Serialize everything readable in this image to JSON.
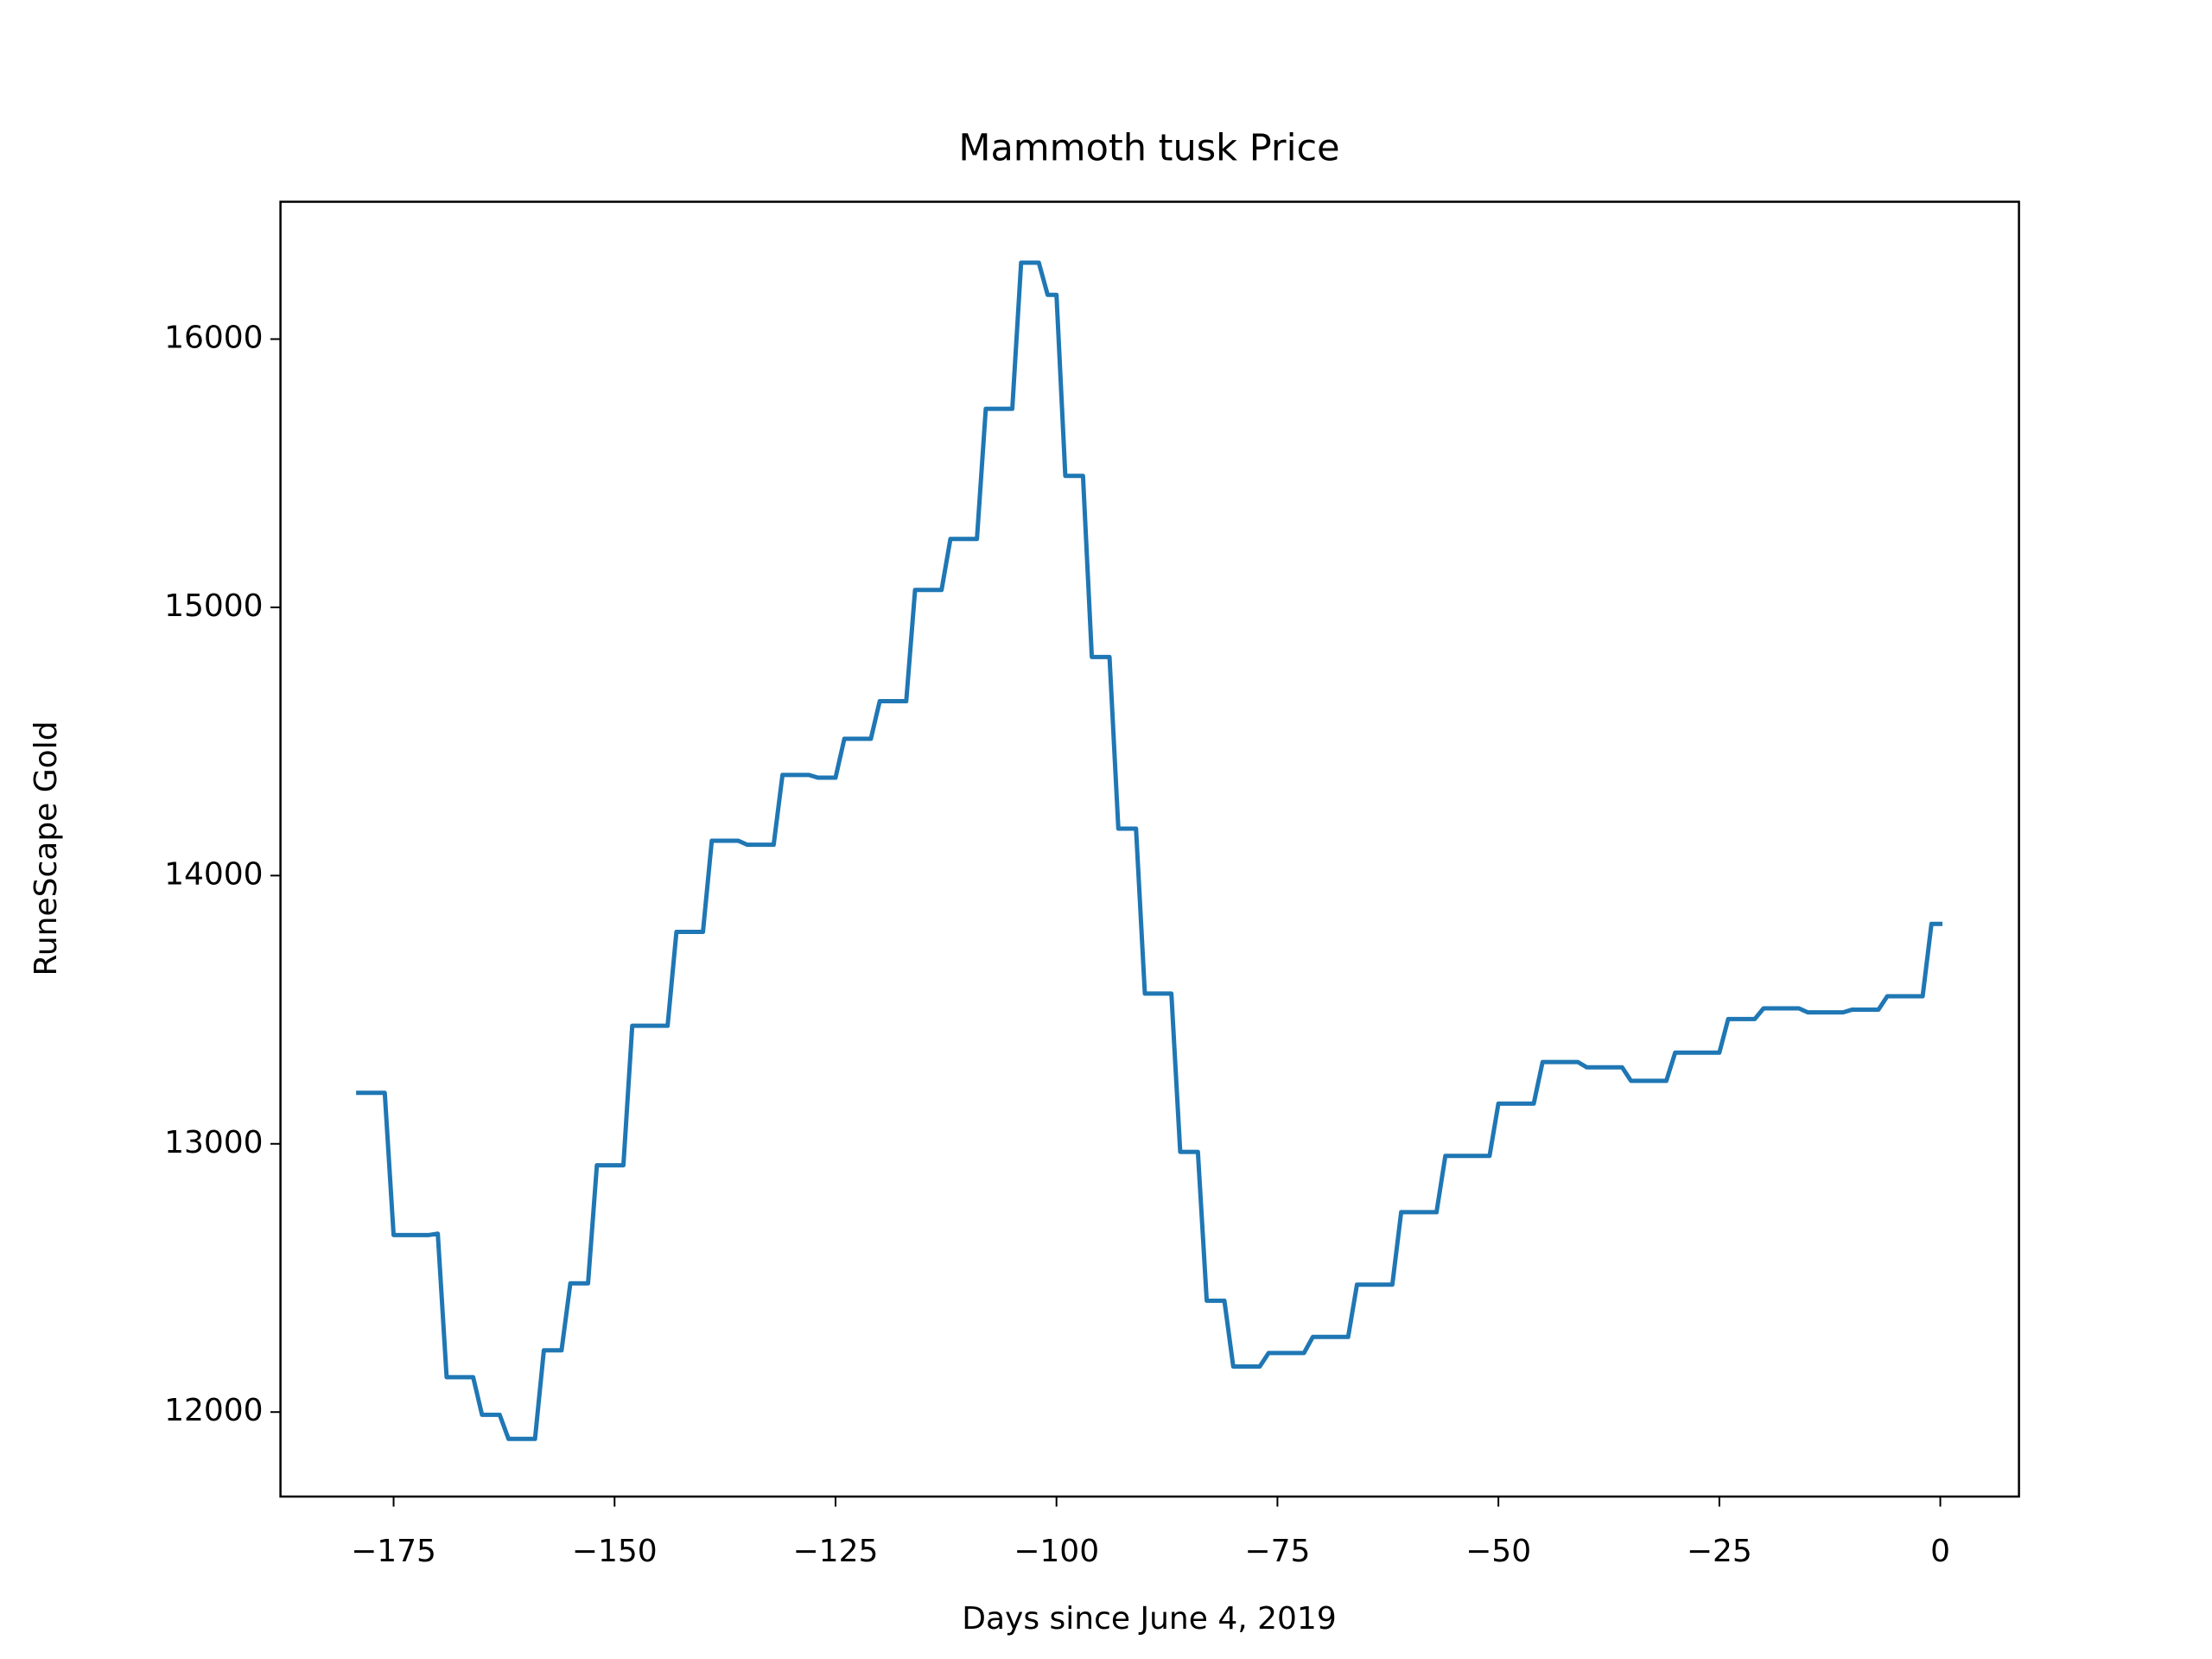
{
  "chart_data": {
    "type": "line",
    "title": "Mammoth tusk Price",
    "x_label": "Days since June 4, 2019",
    "y_label": "RuneScape Gold",
    "xlim": [
      -187.8,
      8.9
    ],
    "ylim": [
      11685,
      16512
    ],
    "xticks": [
      {
        "value": -175,
        "label": "−175"
      },
      {
        "value": -150,
        "label": "−150"
      },
      {
        "value": -125,
        "label": "−125"
      },
      {
        "value": -100,
        "label": "−100"
      },
      {
        "value": -75,
        "label": "−75"
      },
      {
        "value": -50,
        "label": "−50"
      },
      {
        "value": -25,
        "label": "−25"
      },
      0
    ],
    "yticks": [
      12000,
      13000,
      14000,
      15000,
      16000
    ],
    "grid": false,
    "x": [
      -179,
      -178,
      -177,
      -176,
      -175,
      -174,
      -173,
      -172,
      -171,
      -170,
      -169,
      -168,
      -167,
      -166,
      -165,
      -164,
      -163,
      -162,
      -161,
      -160,
      -159,
      -158,
      -157,
      -156,
      -155,
      -154,
      -153,
      -152,
      -151,
      -150,
      -149,
      -148,
      -147,
      -146,
      -145,
      -144,
      -143,
      -142,
      -141,
      -140,
      -139,
      -138,
      -137,
      -136,
      -135,
      -134,
      -133,
      -132,
      -131,
      -130,
      -129,
      -128,
      -127,
      -126,
      -125,
      -124,
      -123,
      -122,
      -121,
      -120,
      -119,
      -118,
      -117,
      -116,
      -115,
      -114,
      -113,
      -112,
      -111,
      -110,
      -109,
      -108,
      -107,
      -106,
      -105,
      -104,
      -103,
      -102,
      -101,
      -100,
      -99,
      -98,
      -97,
      -96,
      -95,
      -94,
      -93,
      -92,
      -91,
      -90,
      -89,
      -88,
      -87,
      -86,
      -85,
      -84,
      -83,
      -82,
      -81,
      -80,
      -79,
      -78,
      -77,
      -76,
      -75,
      -74,
      -73,
      -72,
      -71,
      -70,
      -69,
      -68,
      -67,
      -66,
      -65,
      -64,
      -63,
      -62,
      -61,
      -60,
      -59,
      -58,
      -57,
      -56,
      -55,
      -54,
      -53,
      -52,
      -51,
      -50,
      -49,
      -48,
      -47,
      -46,
      -45,
      -44,
      -43,
      -42,
      -41,
      -40,
      -39,
      -38,
      -37,
      -36,
      -35,
      -34,
      -33,
      -32,
      -31,
      -30,
      -29,
      -28,
      -27,
      -26,
      -25,
      -24,
      -23,
      -22,
      -21,
      -20,
      -19,
      -18,
      -17,
      -16,
      -15,
      -14,
      -13,
      -12,
      -11,
      -10,
      -9,
      -8,
      -7,
      -6,
      -5,
      -4,
      -3,
      -2,
      -1,
      0
    ],
    "series": [
      {
        "name": "Mammoth tusk",
        "color": "#1f77b4",
        "values": [
          13190,
          13190,
          13190,
          13190,
          12660,
          12660,
          12660,
          12660,
          12660,
          12665,
          12130,
          12130,
          12130,
          12130,
          11990,
          11990,
          11990,
          11900,
          11900,
          11900,
          11900,
          12230,
          12230,
          12230,
          12480,
          12480,
          12480,
          12920,
          12920,
          12920,
          12920,
          13440,
          13440,
          13440,
          13440,
          13440,
          13790,
          13790,
          13790,
          13790,
          14130,
          14130,
          14130,
          14130,
          14115,
          14115,
          14115,
          14115,
          14375,
          14375,
          14375,
          14375,
          14365,
          14365,
          14365,
          14510,
          14510,
          14510,
          14510,
          14650,
          14650,
          14650,
          14650,
          15065,
          15065,
          15065,
          15065,
          15255,
          15255,
          15255,
          15255,
          15740,
          15740,
          15740,
          15740,
          16285,
          16285,
          16285,
          16165,
          16165,
          15490,
          15490,
          15490,
          14815,
          14815,
          14815,
          14175,
          14175,
          14175,
          13560,
          13560,
          13560,
          13560,
          12970,
          12970,
          12970,
          12415,
          12415,
          12415,
          12170,
          12170,
          12170,
          12170,
          12220,
          12220,
          12220,
          12220,
          12220,
          12280,
          12280,
          12280,
          12280,
          12280,
          12475,
          12475,
          12475,
          12475,
          12475,
          12745,
          12745,
          12745,
          12745,
          12745,
          12955,
          12955,
          12955,
          12955,
          12955,
          12955,
          13150,
          13150,
          13150,
          13150,
          13150,
          13305,
          13305,
          13305,
          13305,
          13305,
          13285,
          13285,
          13285,
          13285,
          13285,
          13235,
          13235,
          13235,
          13235,
          13235,
          13340,
          13340,
          13340,
          13340,
          13340,
          13340,
          13465,
          13465,
          13465,
          13465,
          13505,
          13505,
          13505,
          13505,
          13505,
          13490,
          13490,
          13490,
          13490,
          13490,
          13500,
          13500,
          13500,
          13500,
          13550,
          13550,
          13550,
          13550,
          13550,
          13820,
          13820
        ]
      }
    ]
  }
}
